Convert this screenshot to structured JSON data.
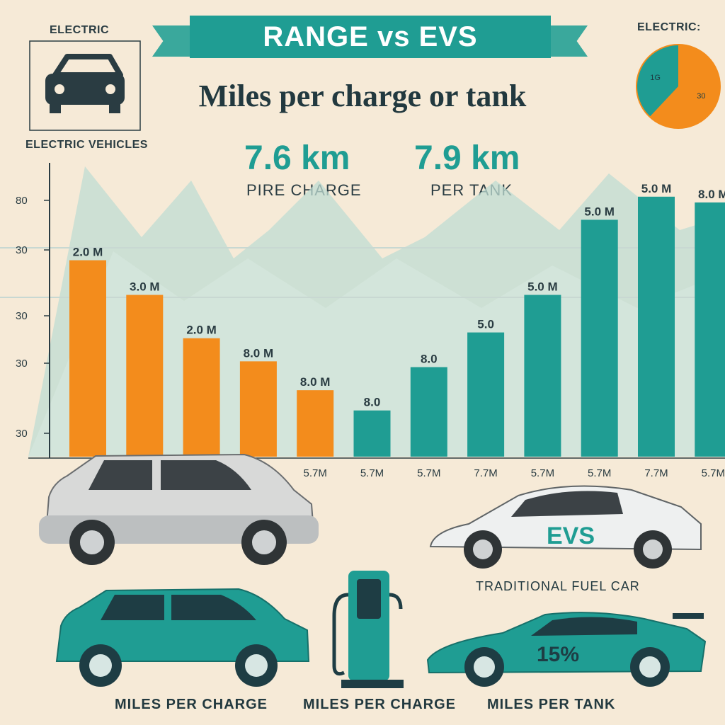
{
  "header": {
    "title": "RANGE vs EVS",
    "subtitle": "Miles per charge or tank",
    "top_left_label": "ELECTRIC",
    "top_right_label": "ELECTRIC:",
    "left_caption": "ELECTRIC VEHICLES"
  },
  "pie": {
    "slices": [
      {
        "label": "30",
        "value": 62,
        "color": "#f38c1c"
      },
      {
        "label": "1G",
        "value": 38,
        "color": "#1f9d93"
      }
    ]
  },
  "stats": [
    {
      "value": "7.6 km",
      "caption": "PIRE CHARGE"
    },
    {
      "value": "7.9 km",
      "caption": "PER TANK"
    }
  ],
  "chart_data": {
    "type": "bar",
    "title": "RANGE vs EVS",
    "subtitle": "Miles per charge or tank",
    "y_ticks": [
      "80",
      "30",
      "30",
      "30",
      "30"
    ],
    "ylim": [
      0,
      100
    ],
    "series": [
      {
        "color": "#f38c1c",
        "values": [
          68,
          56,
          41,
          33,
          23
        ]
      },
      {
        "color": "#1f9d93",
        "values": [
          16,
          31,
          43,
          56,
          82,
          90,
          88
        ]
      }
    ],
    "top_labels": [
      "2.0 M",
      "3.0 M",
      "2.0 M",
      "8.0 M",
      "8.0 M",
      "8.0",
      "8.0",
      "5.0",
      "5.0 M",
      "5.0 M",
      "5.0 M",
      "8.0 M"
    ],
    "x_labels": [
      "",
      "",
      "",
      "5.7M",
      "5.7M",
      "5.7M",
      "5.7M",
      "7.7M",
      "5.7M",
      "5.7M",
      "7.7M",
      "5.7M"
    ]
  },
  "captions": {
    "traditional": "TRADITIONAL FUEL CAR",
    "evs_door": "EVS",
    "sport_door": "15%",
    "bottom": [
      "MILES PER CHARGE",
      "MILES PER CHARGE",
      "MILES PER TANK"
    ]
  },
  "colors": {
    "teal": "#1f9d93",
    "orange": "#f38c1c",
    "background": "#f6ead7"
  }
}
